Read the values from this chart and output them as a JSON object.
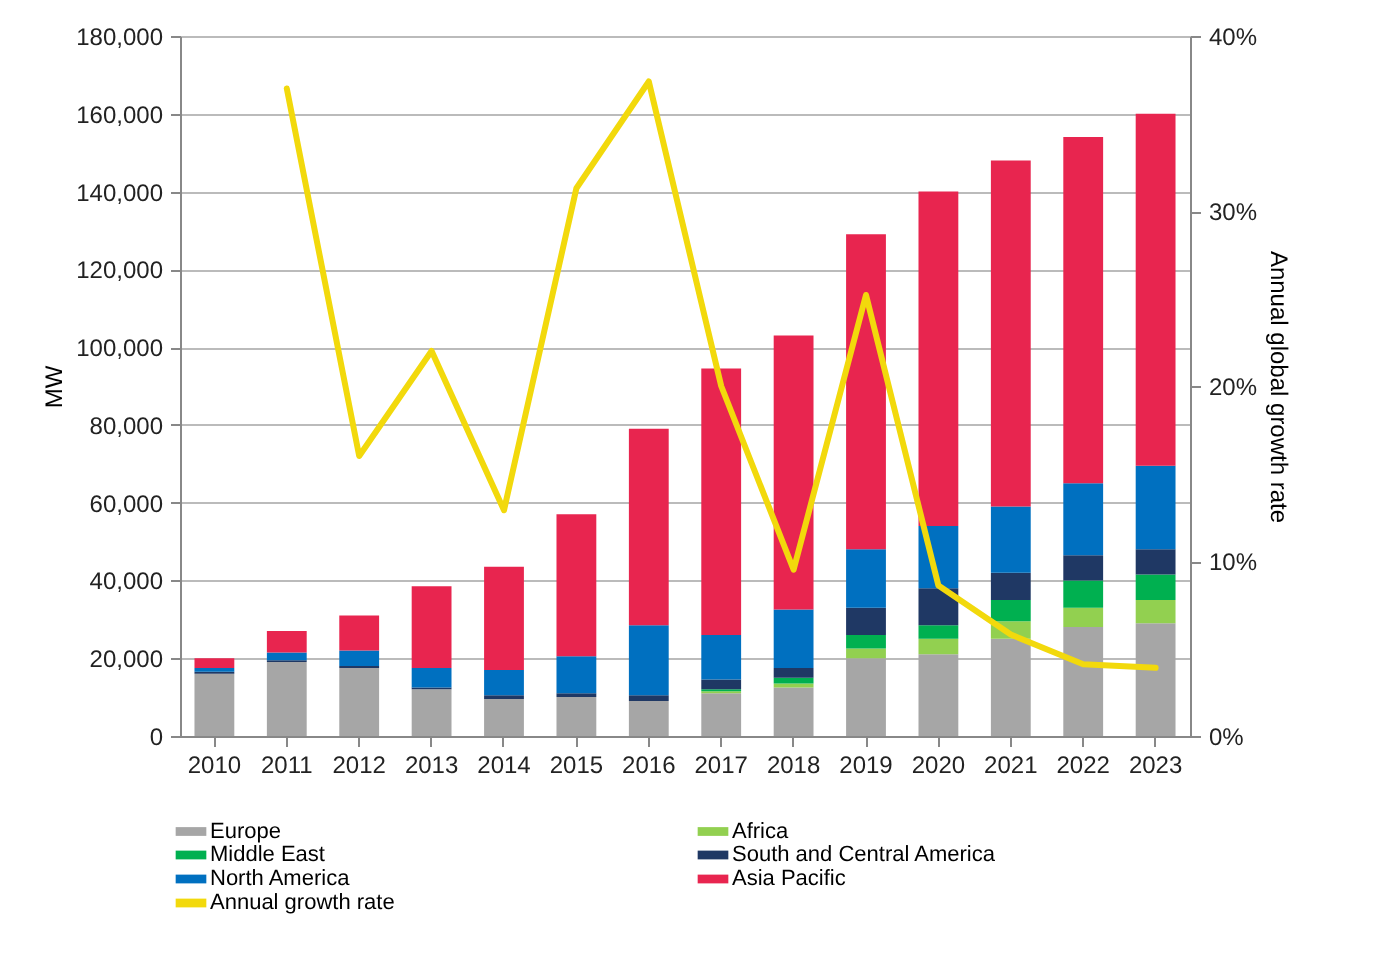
{
  "chart_data": {
    "type": "bar",
    "stacked": true,
    "ylabel": "MW",
    "y2label": "Annual global growth rate",
    "categories": [
      "2010",
      "2011",
      "2012",
      "2013",
      "2014",
      "2015",
      "2016",
      "2017",
      "2018",
      "2019",
      "2020",
      "2021",
      "2022",
      "2023"
    ],
    "series": [
      {
        "name": "Europe",
        "color": "#a6a6a6",
        "values": [
          16000,
          19000,
          17500,
          12000,
          9500,
          10000,
          9000,
          11000,
          12500,
          20000,
          21000,
          25000,
          28000,
          29000
        ]
      },
      {
        "name": "Africa",
        "color": "#92d050",
        "values": [
          null,
          null,
          null,
          null,
          null,
          null,
          null,
          500,
          1000,
          2500,
          4000,
          4500,
          5000,
          6000
        ]
      },
      {
        "name": "Middle East",
        "color": "#00b050",
        "values": [
          null,
          null,
          null,
          null,
          null,
          null,
          null,
          500,
          1500,
          3500,
          3500,
          5500,
          7000,
          6500
        ]
      },
      {
        "name": "South and Central America",
        "color": "#1f3864",
        "values": [
          500,
          500,
          500,
          500,
          1000,
          1000,
          1500,
          2500,
          2500,
          7000,
          9500,
          7000,
          6500,
          6500
        ]
      },
      {
        "name": "North America",
        "color": "#0070c0",
        "values": [
          1000,
          2000,
          4000,
          5000,
          6500,
          9500,
          18000,
          11500,
          15000,
          15000,
          16000,
          17000,
          18500,
          21500
        ]
      },
      {
        "name": "Asia Pacific",
        "color": "#e8254f",
        "values": [
          2500,
          5500,
          9000,
          21000,
          26500,
          36500,
          50500,
          68500,
          70500,
          81000,
          86000,
          89000,
          89000,
          90500
        ]
      },
      {
        "name": "Annual growth rate",
        "type": "line",
        "axis": "y2",
        "color": "#f2d90c",
        "values": [
          null,
          37,
          16,
          22,
          12.9,
          31.3,
          37.4,
          20,
          9.5,
          25.2,
          8.6,
          5.8,
          4.1,
          3.9
        ]
      }
    ],
    "ylim": [
      0,
      180000
    ],
    "yticks": [
      0,
      {
        "value": 20000,
        "label": "20,000"
      },
      {
        "value": 40000,
        "label": "40,000"
      },
      {
        "value": 60000,
        "label": "60,000"
      },
      {
        "value": 80000,
        "label": "80,000"
      },
      {
        "value": 100000,
        "label": "100,000"
      },
      {
        "value": 120000,
        "label": "120,000"
      },
      {
        "value": 140000,
        "label": "140,000"
      },
      {
        "value": 160000,
        "label": "160,000"
      },
      {
        "value": 180000,
        "label": "180,000"
      }
    ],
    "y2lim": [
      0,
      40
    ],
    "y2ticks": [
      {
        "value": 0,
        "label": "0%"
      },
      {
        "value": 10,
        "label": "10%"
      },
      {
        "value": 20,
        "label": "20%"
      },
      {
        "value": 30,
        "label": "30%"
      },
      {
        "value": 40,
        "label": "40%"
      }
    ],
    "grid": "y",
    "legend": "bottom"
  }
}
